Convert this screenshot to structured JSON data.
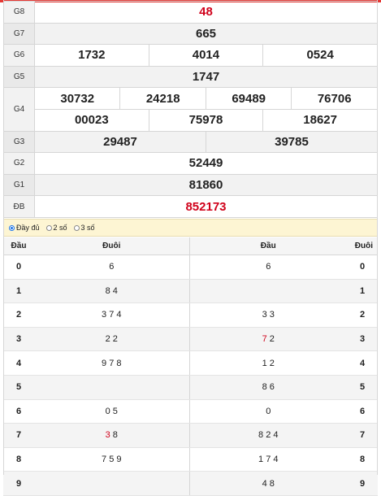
{
  "prizes": [
    {
      "label": "G8",
      "numbers": [
        "48"
      ]
    },
    {
      "label": "G7",
      "numbers": [
        "665"
      ]
    },
    {
      "label": "G6",
      "numbers": [
        "1732",
        "4014",
        "0524"
      ]
    },
    {
      "label": "G5",
      "numbers": [
        "1747"
      ]
    },
    {
      "label": "G4",
      "numbers": [
        "30732",
        "24218",
        "69489",
        "76706",
        "00023",
        "75978",
        "18627"
      ]
    },
    {
      "label": "G3",
      "numbers": [
        "29487",
        "39785"
      ]
    },
    {
      "label": "G2",
      "numbers": [
        "52449"
      ]
    },
    {
      "label": "G1",
      "numbers": [
        "81860"
      ]
    },
    {
      "label": "ĐB",
      "numbers": [
        "852173"
      ]
    }
  ],
  "options": {
    "full": "Đầy đủ",
    "two": "2 số",
    "three": "3 số"
  },
  "headers": {
    "dau": "Đầu",
    "duoi": "Đuôi",
    "dau2": "Đầu",
    "duoi2": "Đuôi"
  },
  "rows": [
    {
      "dau": "0",
      "duoi": "6",
      "dau_r": "6",
      "duoi_r": "0"
    },
    {
      "dau": "1",
      "duoi": "8 4",
      "dau_r": "",
      "duoi_r": "1"
    },
    {
      "dau": "2",
      "duoi": "3 7 4",
      "dau_r": "3 3",
      "duoi_r": "2"
    },
    {
      "dau": "3",
      "duoi": "2 2",
      "dau_r_red": "7",
      "dau_r_rest": " 2",
      "duoi_r": "3"
    },
    {
      "dau": "4",
      "duoi": "9 7 8",
      "dau_r": "1 2",
      "duoi_r": "4"
    },
    {
      "dau": "5",
      "duoi": "",
      "dau_r": "8 6",
      "duoi_r": "5"
    },
    {
      "dau": "6",
      "duoi": "0 5",
      "dau_r": "0",
      "duoi_r": "6"
    },
    {
      "dau": "7",
      "duoi_red": "3",
      "duoi_rest": " 8",
      "dau_r": "8 2 4",
      "duoi_r": "7"
    },
    {
      "dau": "8",
      "duoi": "7 5 9",
      "dau_r": "1 7 4",
      "duoi_r": "8"
    },
    {
      "dau": "9",
      "duoi": "",
      "dau_r": "4 8",
      "duoi_r": "9"
    }
  ],
  "colors": {
    "topbar": "#e53935",
    "highlight": "#d0021b",
    "options_bg": "#fdf5d3"
  }
}
